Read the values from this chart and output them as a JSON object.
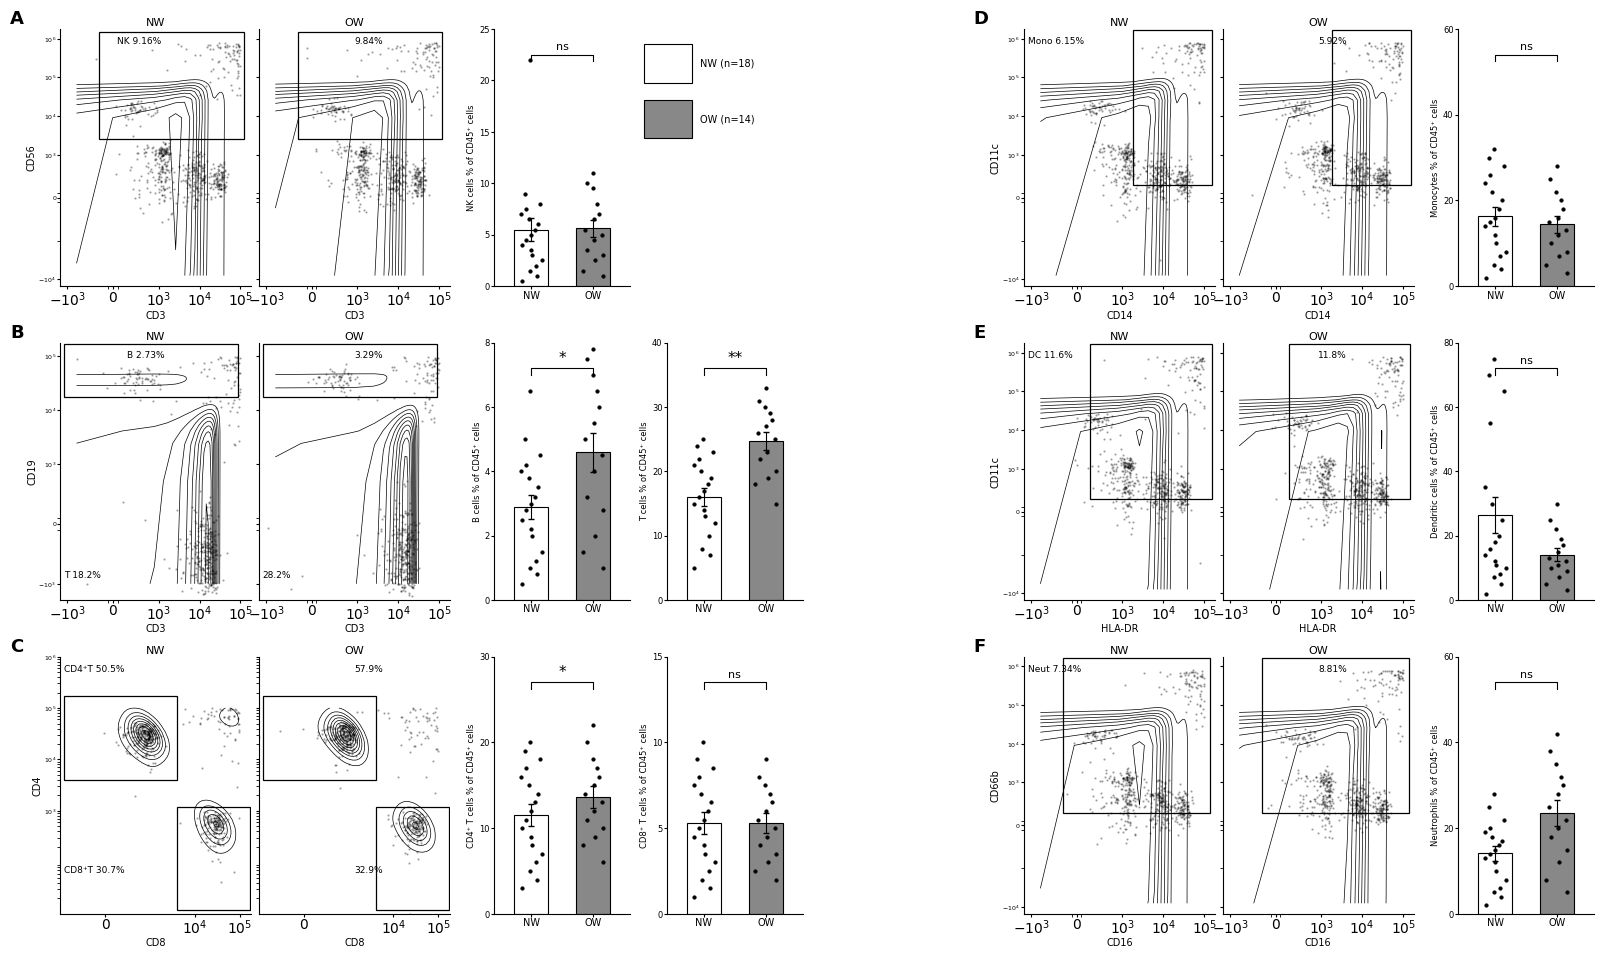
{
  "panels": {
    "A": {
      "label": "A",
      "nw_pct": "NK 9.16%",
      "ow_pct": "9.84%",
      "ylabel": "CD56",
      "xlabel": "CD3",
      "stat_ylabel": "NK cells % of CD45⁺ cells",
      "stat_ylim": [
        0,
        25
      ],
      "stat_yticks": [
        0,
        5,
        10,
        15,
        20,
        25
      ],
      "nw_dots": [
        0.5,
        1.0,
        1.5,
        2.0,
        2.5,
        3.0,
        3.5,
        4.0,
        4.5,
        5.0,
        5.5,
        6.0,
        6.5,
        7.0,
        7.5,
        8.0,
        9.0,
        22.0
      ],
      "ow_dots": [
        1.0,
        1.5,
        2.5,
        3.0,
        3.5,
        4.5,
        5.0,
        5.5,
        6.5,
        7.0,
        8.0,
        9.5,
        10.0,
        11.0
      ],
      "sig": "ns"
    },
    "B": {
      "label": "B",
      "ylabel": "CD19",
      "xlabel": "CD3",
      "stat_ylabel1": "B cells % of CD45⁺ cells",
      "stat_ylabel2": "T cells % of CD45⁺ cells",
      "stat_ylim1": [
        0,
        8
      ],
      "stat_ylim2": [
        0,
        40
      ],
      "stat_yticks1": [
        0,
        2,
        4,
        6,
        8
      ],
      "stat_yticks2": [
        0,
        10,
        20,
        30,
        40
      ],
      "nw_dots1": [
        0.5,
        0.8,
        1.0,
        1.2,
        1.5,
        2.0,
        2.2,
        2.5,
        2.8,
        3.0,
        3.2,
        3.5,
        3.8,
        4.0,
        4.2,
        4.5,
        5.0,
        6.5
      ],
      "ow_dots1": [
        1.0,
        1.5,
        2.0,
        2.8,
        3.2,
        4.0,
        4.5,
        5.0,
        5.5,
        6.0,
        6.5,
        7.0,
        7.5,
        7.8
      ],
      "nw_dots2": [
        5.0,
        7.0,
        8.0,
        10.0,
        12.0,
        13.0,
        14.0,
        15.0,
        16.0,
        17.0,
        18.0,
        19.0,
        20.0,
        21.0,
        22.0,
        23.0,
        24.0,
        25.0
      ],
      "ow_dots2": [
        15.0,
        18.0,
        19.0,
        20.0,
        22.0,
        23.0,
        25.0,
        26.0,
        27.0,
        28.0,
        29.0,
        30.0,
        31.0,
        33.0
      ],
      "sig1": "*",
      "sig2": "**"
    },
    "C": {
      "label": "C",
      "ylabel": "CD4",
      "xlabel": "CD8",
      "stat_ylabel1": "CD4⁺ T cells % of CD45⁺ cells",
      "stat_ylabel2": "CD8⁺ T cells % of CD45⁺ cells",
      "stat_ylim1": [
        0,
        30
      ],
      "stat_ylim2": [
        0,
        15
      ],
      "stat_yticks1": [
        0,
        10,
        20,
        30
      ],
      "stat_yticks2": [
        0,
        5,
        10,
        15
      ],
      "nw_dots1": [
        3.0,
        4.0,
        5.0,
        6.0,
        7.0,
        8.0,
        9.0,
        10.0,
        11.0,
        12.0,
        13.0,
        14.0,
        15.0,
        16.0,
        17.0,
        18.0,
        19.0,
        20.0
      ],
      "ow_dots1": [
        6.0,
        8.0,
        9.0,
        10.0,
        11.0,
        12.0,
        13.0,
        14.0,
        15.0,
        16.0,
        17.0,
        18.0,
        20.0,
        22.0
      ],
      "nw_dots2": [
        1.0,
        1.5,
        2.0,
        2.5,
        3.0,
        3.5,
        4.0,
        4.5,
        5.0,
        5.5,
        6.0,
        6.5,
        7.0,
        7.5,
        8.0,
        8.5,
        9.0,
        10.0
      ],
      "ow_dots2": [
        2.0,
        2.5,
        3.0,
        3.5,
        4.0,
        4.5,
        5.0,
        5.5,
        6.0,
        6.5,
        7.0,
        7.5,
        8.0,
        9.0
      ],
      "sig1": "*",
      "sig2": "ns"
    },
    "D": {
      "label": "D",
      "nw_pct": "Mono 6.15%",
      "ow_pct": "5.92%",
      "ylabel": "CD11c",
      "xlabel": "CD14",
      "stat_ylabel": "Monocytes % of CD45⁺ cells",
      "stat_ylim": [
        0,
        60
      ],
      "stat_yticks": [
        0,
        20,
        40,
        60
      ],
      "nw_dots": [
        2.0,
        4.0,
        5.0,
        7.0,
        8.0,
        10.0,
        12.0,
        14.0,
        15.0,
        16.0,
        18.0,
        20.0,
        22.0,
        24.0,
        26.0,
        28.0,
        30.0,
        32.0
      ],
      "ow_dots": [
        3.0,
        5.0,
        7.0,
        8.0,
        10.0,
        12.0,
        13.0,
        15.0,
        16.0,
        18.0,
        20.0,
        22.0,
        25.0,
        28.0
      ],
      "sig": "ns"
    },
    "E": {
      "label": "E",
      "nw_pct": "DC 11.6%",
      "ow_pct": "11.8%",
      "ylabel": "CD11c",
      "xlabel": "HLA-DR",
      "stat_ylabel": "Dendritic cells % of CD45⁺ cells",
      "stat_ylim": [
        0,
        80
      ],
      "stat_yticks": [
        0,
        20,
        40,
        60,
        80
      ],
      "nw_dots": [
        2.0,
        5.0,
        7.0,
        8.0,
        10.0,
        11.0,
        12.0,
        14.0,
        16.0,
        18.0,
        20.0,
        25.0,
        30.0,
        35.0,
        55.0,
        65.0,
        70.0,
        75.0
      ],
      "ow_dots": [
        3.0,
        5.0,
        7.0,
        9.0,
        10.0,
        11.0,
        12.0,
        13.0,
        15.0,
        17.0,
        19.0,
        22.0,
        25.0,
        30.0
      ],
      "sig": "ns"
    },
    "F": {
      "label": "F",
      "nw_pct": "Neut 7.34%",
      "ow_pct": "8.81%",
      "ylabel": "CD66b",
      "xlabel": "CD16",
      "stat_ylabel": "Neutrophils % of CD45⁺ cells",
      "stat_ylim": [
        0,
        60
      ],
      "stat_yticks": [
        0,
        20,
        40,
        60
      ],
      "nw_dots": [
        2.0,
        4.0,
        5.0,
        6.0,
        8.0,
        10.0,
        12.0,
        13.0,
        14.0,
        15.0,
        16.0,
        17.0,
        18.0,
        19.0,
        20.0,
        22.0,
        25.0,
        28.0
      ],
      "ow_dots": [
        5.0,
        8.0,
        12.0,
        15.0,
        18.0,
        20.0,
        22.0,
        25.0,
        28.0,
        30.0,
        32.0,
        35.0,
        38.0,
        42.0
      ],
      "sig": "ns"
    }
  },
  "nw_color": "#ffffff",
  "ow_color": "#888888",
  "nw_label": "NW (n=18)",
  "ow_label": "OW (n=14)"
}
